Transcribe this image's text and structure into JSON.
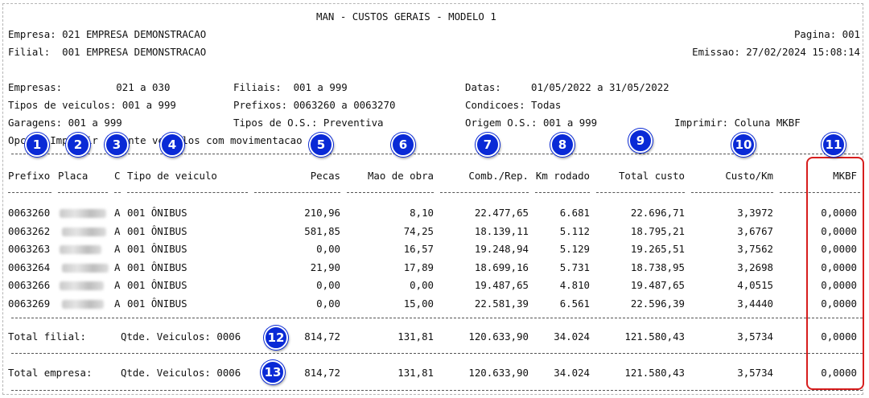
{
  "title": "MAN - CUSTOS GERAIS - MODELO 1",
  "header": {
    "empresa": "Empresa: 021 EMPRESA DEMONSTRACAO",
    "filial": "Filial:  001 EMPRESA DEMONSTRACAO",
    "pagina": "Pagina: 001",
    "emissao": "Emissao: 27/02/2024 15:08:14"
  },
  "filters": {
    "empresas": "Empresas:         021 a 030",
    "tipos_veiculos": "Tipos de veiculos: 001 a 999",
    "garagens": "Garagens: 001 a 999",
    "opcao": "Opcao: Imprimir somente veiculos com movimentacao",
    "filiais": "Filiais:  001 a 999",
    "prefixos": "Prefixos: 0063260 a 0063270",
    "tipos_os": "Tipos de O.S.: Preventiva",
    "datas": "Datas:     01/05/2022 a 31/05/2022",
    "condicoes": "Condicoes: Todas",
    "origem_os": "Origem O.S.: 001 a 999",
    "imprimir": "Imprimir: Coluna MKBF"
  },
  "columns": {
    "prefixo": "Prefixo",
    "placa": "Placa",
    "c": "C",
    "tipo": "Tipo de veiculo",
    "pecas": "Pecas",
    "mao_obra": "Mao de obra",
    "comb": "Comb./Rep.",
    "km": "Km rodado",
    "total": "Total custo",
    "custo_km": "Custo/Km",
    "mkbf": "MKBF"
  },
  "rows": [
    {
      "prefixo": "0063260",
      "c": "A",
      "tipo": "001 ÔNIBUS",
      "pecas": "210,96",
      "mao": "8,10",
      "comb": "22.477,65",
      "km": "6.681",
      "total": "22.696,71",
      "custo_km": "3,3972",
      "mkbf": "0,0000"
    },
    {
      "prefixo": "0063262",
      "c": "A",
      "tipo": "001 ÔNIBUS",
      "pecas": "581,85",
      "mao": "74,25",
      "comb": "18.139,11",
      "km": "5.112",
      "total": "18.795,21",
      "custo_km": "3,6767",
      "mkbf": "0,0000"
    },
    {
      "prefixo": "0063263",
      "c": "A",
      "tipo": "001 ÔNIBUS",
      "pecas": "0,00",
      "mao": "16,57",
      "comb": "19.248,94",
      "km": "5.129",
      "total": "19.265,51",
      "custo_km": "3,7562",
      "mkbf": "0,0000"
    },
    {
      "prefixo": "0063264",
      "c": "A",
      "tipo": "001 ÔNIBUS",
      "pecas": "21,90",
      "mao": "17,89",
      "comb": "18.699,16",
      "km": "5.731",
      "total": "18.738,95",
      "custo_km": "3,2698",
      "mkbf": "0,0000"
    },
    {
      "prefixo": "0063266",
      "c": "A",
      "tipo": "001 ÔNIBUS",
      "pecas": "0,00",
      "mao": "0,00",
      "comb": "19.487,65",
      "km": "4.810",
      "total": "19.487,65",
      "custo_km": "4,0515",
      "mkbf": "0,0000"
    },
    {
      "prefixo": "0063269",
      "c": "A",
      "tipo": "001 ÔNIBUS",
      "pecas": "0,00",
      "mao": "15,00",
      "comb": "22.581,39",
      "km": "6.561",
      "total": "22.596,39",
      "custo_km": "3,4440",
      "mkbf": "0,0000"
    }
  ],
  "total_filial": {
    "label": "Total filial:",
    "qtde": "Qtde. Veiculos: 0006",
    "pecas": "814,72",
    "mao": "131,81",
    "comb": "120.633,90",
    "km": "34.024",
    "total": "121.580,43",
    "custo_km": "3,5734",
    "mkbf": "0,0000"
  },
  "total_empresa": {
    "label": "Total empresa:",
    "qtde": "Qtde. Veiculos: 0006",
    "pecas": "814,72",
    "mao": "131,81",
    "comb": "120.633,90",
    "km": "34.024",
    "total": "121.580,43",
    "custo_km": "3,5734",
    "mkbf": "0,0000"
  },
  "badges": [
    "1",
    "2",
    "3",
    "4",
    "5",
    "6",
    "7",
    "8",
    "9",
    "10",
    "11",
    "12",
    "13"
  ],
  "colors": {
    "badge": "#0a2ad6",
    "highlight": "#d71e1e"
  }
}
